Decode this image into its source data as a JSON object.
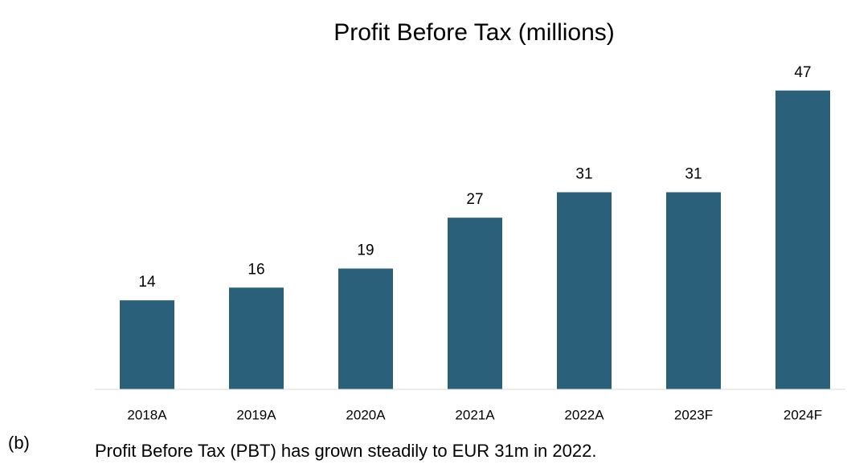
{
  "chart_data": {
    "type": "bar",
    "title": "Profit Before Tax (millions)",
    "categories": [
      "2018A",
      "2019A",
      "2020A",
      "2021A",
      "2022A",
      "2023F",
      "2024F"
    ],
    "values": [
      14,
      16,
      19,
      27,
      31,
      31,
      47
    ],
    "color": "#2a6079",
    "ylim": [
      0,
      50
    ],
    "grid": false
  },
  "label": "(b)",
  "caption": "Profit Before Tax (PBT) has grown steadily to EUR 31m in 2022."
}
